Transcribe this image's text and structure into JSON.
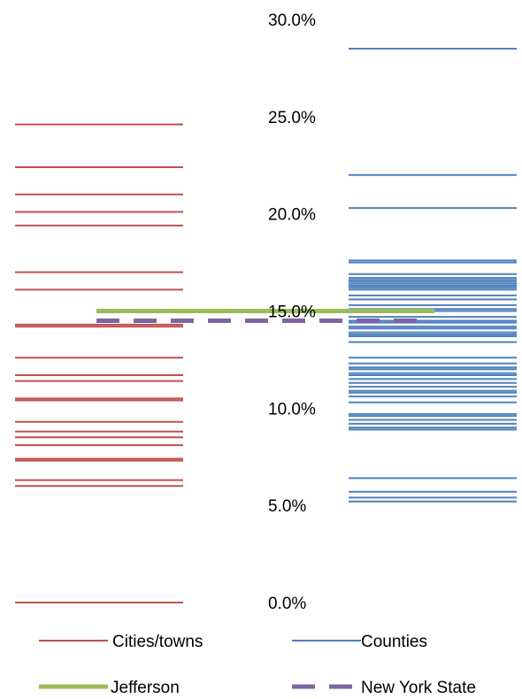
{
  "chart_data": {
    "type": "line",
    "ylim": [
      0,
      30
    ],
    "yticks": [
      "0.0%",
      "5.0%",
      "10.0%",
      "15.0%",
      "20.0%",
      "25.0%",
      "30.0%"
    ],
    "grid": false,
    "legend_position": "bottom",
    "series": [
      {
        "name": "Cities/towns",
        "color": "#C0504D",
        "values": [
          0.0,
          6.0,
          6.3,
          7.3,
          7.4,
          8.1,
          8.5,
          8.8,
          9.3,
          10.4,
          10.5,
          11.4,
          11.7,
          12.6,
          14.2,
          14.3,
          16.1,
          17.0,
          19.4,
          20.1,
          21.0,
          22.4,
          24.6
        ]
      },
      {
        "name": "Counties",
        "color": "#4F81BD",
        "values": [
          5.2,
          5.4,
          5.7,
          6.4,
          8.9,
          9.0,
          9.2,
          9.4,
          9.6,
          9.7,
          10.3,
          10.6,
          10.8,
          10.9,
          11.1,
          11.3,
          11.5,
          11.7,
          11.8,
          12.0,
          12.1,
          12.3,
          12.6,
          13.4,
          13.7,
          13.8,
          13.9,
          14.1,
          14.2,
          14.4,
          14.5,
          14.7,
          15.0,
          15.1,
          15.3,
          15.6,
          15.8,
          16.1,
          16.2,
          16.3,
          16.4,
          16.5,
          16.6,
          16.7,
          16.9,
          17.5,
          17.6,
          20.3,
          22.0,
          28.5
        ]
      },
      {
        "name": "Jefferson",
        "color": "#9BBB59",
        "values": [
          15.0
        ]
      },
      {
        "name": "New York State",
        "color": "#8064A2",
        "values": [
          14.5
        ]
      }
    ]
  }
}
